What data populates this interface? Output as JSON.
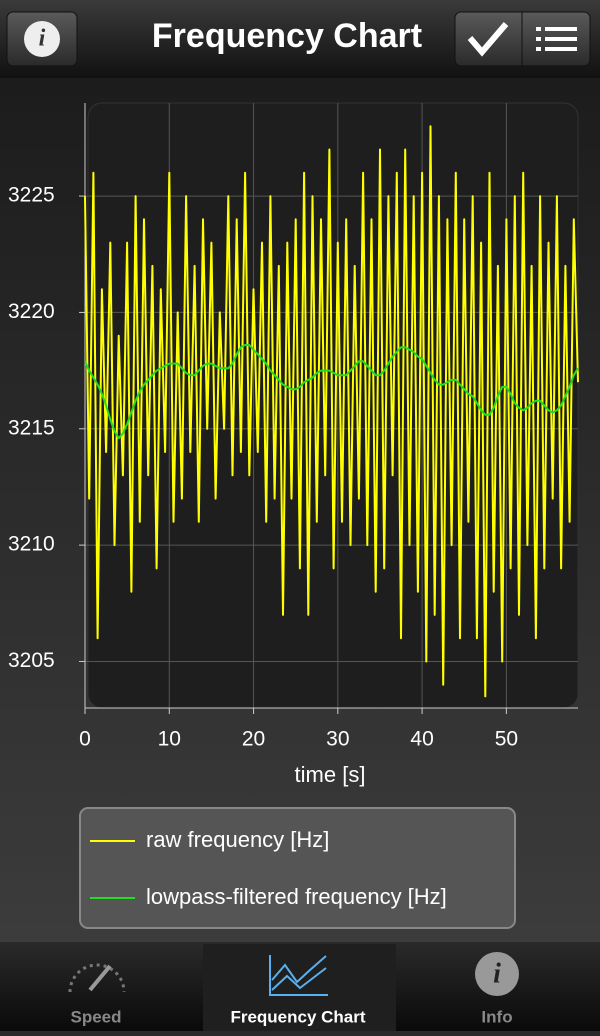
{
  "header": {
    "title": "Frequency Chart"
  },
  "chart_data": {
    "type": "line",
    "xlabel": "time [s]",
    "xlim": [
      0,
      58.5
    ],
    "ylim": [
      3203,
      3229
    ],
    "xticks": [
      0,
      10,
      20,
      30,
      40,
      50
    ],
    "yticks": [
      3205,
      3210,
      3215,
      3220,
      3225
    ],
    "grid": true,
    "x": [
      0,
      0.5,
      1,
      1.5,
      2,
      2.5,
      3,
      3.5,
      4,
      4.5,
      5,
      5.5,
      6,
      6.5,
      7,
      7.5,
      8,
      8.5,
      9,
      9.5,
      10,
      10.5,
      11,
      11.5,
      12,
      12.5,
      13,
      13.5,
      14,
      14.5,
      15,
      15.5,
      16,
      16.5,
      17,
      17.5,
      18,
      18.5,
      19,
      19.5,
      20,
      20.5,
      21,
      21.5,
      22,
      22.5,
      23,
      23.5,
      24,
      24.5,
      25,
      25.5,
      26,
      26.5,
      27,
      27.5,
      28,
      28.5,
      29,
      29.5,
      30,
      30.5,
      31,
      31.5,
      32,
      32.5,
      33,
      33.5,
      34,
      34.5,
      35,
      35.5,
      36,
      36.5,
      37,
      37.5,
      38,
      38.5,
      39,
      39.5,
      40,
      40.5,
      41,
      41.5,
      42,
      42.5,
      43,
      43.5,
      44,
      44.5,
      45,
      45.5,
      46,
      46.5,
      47,
      47.5,
      48,
      48.5,
      49,
      49.5,
      50,
      50.5,
      51,
      51.5,
      52,
      52.5,
      53,
      53.5,
      54,
      54.5,
      55,
      55.5,
      56,
      56.5,
      57,
      57.5,
      58,
      58.5
    ],
    "series": [
      {
        "name": "raw frequency [Hz]",
        "color": "#ffff00",
        "values": [
          3225,
          3212,
          3226,
          3206,
          3221,
          3214,
          3223,
          3210,
          3219,
          3213,
          3223,
          3208,
          3225,
          3211,
          3224,
          3213,
          3222,
          3209,
          3221,
          3214,
          3226,
          3211,
          3220,
          3212,
          3225,
          3214,
          3222,
          3211,
          3224,
          3215,
          3223,
          3212,
          3220,
          3215,
          3225,
          3213,
          3224,
          3214,
          3226,
          3213,
          3221,
          3214,
          3223,
          3211,
          3225,
          3212,
          3222,
          3207,
          3223,
          3212,
          3224,
          3209,
          3226,
          3207,
          3225,
          3211,
          3224,
          3213,
          3227,
          3209,
          3223,
          3211,
          3224,
          3210,
          3222,
          3212,
          3226,
          3210,
          3224,
          3208,
          3227,
          3209,
          3225,
          3213,
          3226,
          3206,
          3227,
          3210,
          3225,
          3208,
          3226,
          3205,
          3228,
          3207,
          3225,
          3204,
          3224,
          3210,
          3226,
          3206,
          3224,
          3211,
          3225,
          3206,
          3223,
          3203.5,
          3226,
          3208,
          3222,
          3205,
          3224,
          3209,
          3225,
          3207,
          3226,
          3210,
          3222,
          3206,
          3225,
          3209,
          3223,
          3212,
          3225,
          3209,
          3222,
          3211,
          3224,
          3217
        ]
      },
      {
        "name": "lowpass-filtered frequency [Hz]",
        "color": "#22dd22",
        "values": [
          3217.9,
          3217.5,
          3217.2,
          3216.9,
          3216.5,
          3216.0,
          3215.4,
          3214.9,
          3214.6,
          3214.8,
          3215.2,
          3215.7,
          3216.2,
          3216.6,
          3216.9,
          3217.1,
          3217.3,
          3217.5,
          3217.6,
          3217.7,
          3217.8,
          3217.8,
          3217.8,
          3217.6,
          3217.4,
          3217.3,
          3217.3,
          3217.5,
          3217.7,
          3217.8,
          3217.8,
          3217.7,
          3217.6,
          3217.6,
          3217.6,
          3217.8,
          3218.2,
          3218.5,
          3218.6,
          3218.6,
          3218.4,
          3218.2,
          3218.0,
          3217.8,
          3217.5,
          3217.3,
          3217.1,
          3216.9,
          3216.8,
          3216.7,
          3216.7,
          3216.8,
          3217.0,
          3217.1,
          3217.2,
          3217.4,
          3217.5,
          3217.5,
          3217.5,
          3217.4,
          3217.3,
          3217.3,
          3217.3,
          3217.5,
          3217.7,
          3217.9,
          3217.9,
          3217.7,
          3217.5,
          3217.3,
          3217.3,
          3217.5,
          3217.8,
          3218.1,
          3218.3,
          3218.5,
          3218.5,
          3218.4,
          3218.3,
          3218.1,
          3218.0,
          3217.7,
          3217.4,
          3217.1,
          3216.9,
          3216.9,
          3217.0,
          3217.1,
          3217.1,
          3216.9,
          3216.7,
          3216.5,
          3216.4,
          3216.1,
          3215.8,
          3215.6,
          3215.6,
          3215.9,
          3216.4,
          3216.8,
          3216.8,
          3216.5,
          3216.1,
          3215.9,
          3215.8,
          3215.9,
          3216.1,
          3216.2,
          3216.2,
          3216.0,
          3215.8,
          3215.7,
          3215.8,
          3216.0,
          3216.4,
          3216.8,
          3217.3,
          3217.6
        ]
      }
    ]
  },
  "tabs": [
    "Speed",
    "Frequency Chart",
    "Info"
  ]
}
